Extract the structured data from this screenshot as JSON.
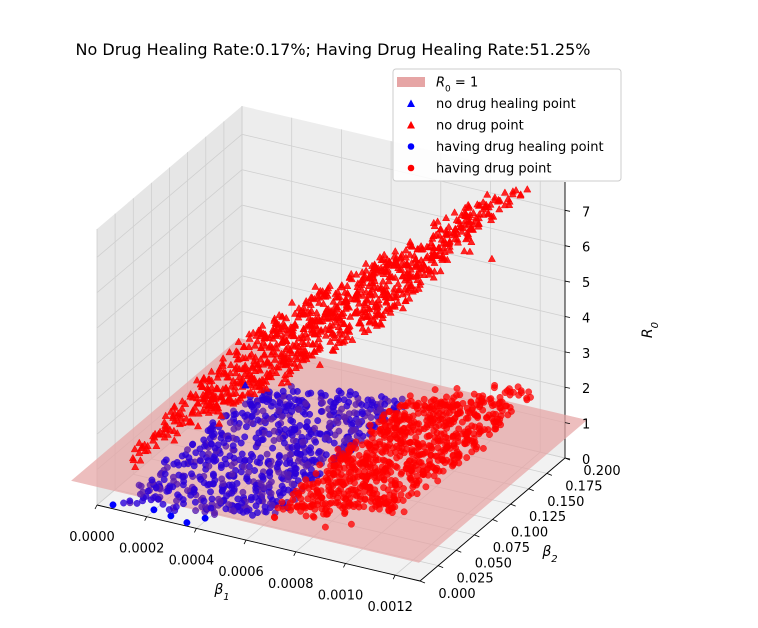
{
  "chart_data": {
    "type": "scatter",
    "projection": "3d",
    "title": "No Drug Healing Rate:0.17%; Having Drug Healing Rate:51.25%",
    "xlabel": "β₁",
    "ylabel": "β₂",
    "zlabel": "R₀",
    "xlim": [
      0,
      0.0013
    ],
    "ylim": [
      0,
      0.2
    ],
    "zlim": [
      0,
      7.8
    ],
    "x_ticks": [
      "0.0000",
      "0.0002",
      "0.0004",
      "0.0006",
      "0.0008",
      "0.0010",
      "0.0012"
    ],
    "y_ticks": [
      "0.000",
      "0.025",
      "0.050",
      "0.075",
      "0.100",
      "0.125",
      "0.150",
      "0.175",
      "0.200"
    ],
    "z_ticks": [
      "0",
      "1",
      "2",
      "3",
      "4",
      "5",
      "6",
      "7"
    ],
    "grid": true,
    "legend_position": "top-right",
    "plane": {
      "name": "R₀ = 1",
      "z": 1,
      "color": "#e6a5a5"
    },
    "series": [
      {
        "name": "no drug healing point",
        "marker": "triangle",
        "color": "#0000ff",
        "description_count": "very few",
        "points": [
          [
            0.00013,
            0.16,
            0.82
          ]
        ]
      },
      {
        "name": "no drug point",
        "marker": "triangle",
        "color": "#ff0000",
        "relation": "R0 ≈ 5600·β1 + 5·β2 (band)",
        "samples": [
          [
            0.0002,
            0.1,
            1.6
          ],
          [
            0.0004,
            0.1,
            2.6
          ],
          [
            0.0006,
            0.1,
            3.6
          ],
          [
            0.0008,
            0.1,
            4.6
          ],
          [
            0.001,
            0.1,
            5.8
          ],
          [
            0.00118,
            0.11,
            6.9
          ]
        ]
      },
      {
        "name": "having drug healing point",
        "marker": "circle",
        "color": "#0000ff",
        "region": "β1 < 0.0007, R0 < 1",
        "samples": [
          [
            0.0002,
            0.02,
            0.3
          ],
          [
            0.0004,
            0.08,
            0.5
          ],
          [
            0.0006,
            0.12,
            0.7
          ]
        ]
      },
      {
        "name": "having drug point",
        "marker": "circle",
        "color": "#ff0000",
        "region": "β1 > 0.0006, R0 ≈ 0.7–2.3",
        "samples": [
          [
            0.0007,
            0.05,
            0.9
          ],
          [
            0.0009,
            0.1,
            1.3
          ],
          [
            0.0011,
            0.15,
            1.8
          ],
          [
            0.0012,
            0.18,
            2.1
          ]
        ]
      }
    ]
  },
  "legend": {
    "items": [
      {
        "label": "$R_0 = 1$",
        "display": "R",
        "sub": "0",
        "rest": " = 1",
        "kind": "patch",
        "color": "#e6a5a5"
      },
      {
        "label": "no drug healing point",
        "kind": "triangle",
        "color": "#0000ff"
      },
      {
        "label": "no drug point",
        "kind": "triangle",
        "color": "#ff0000"
      },
      {
        "label": "having drug healing point",
        "kind": "circle",
        "color": "#0000ff"
      },
      {
        "label": "having drug point",
        "kind": "circle",
        "color": "#ff0000"
      }
    ]
  }
}
